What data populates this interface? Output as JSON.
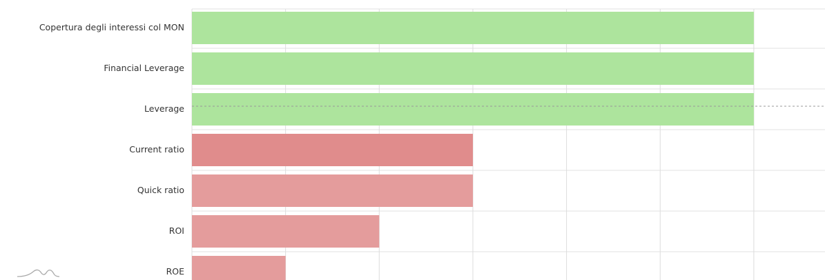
{
  "chart_data": {
    "type": "hbar",
    "categories": [
      "Copertura degli interessi col MON",
      "Financial Leverage",
      "Leverage",
      "Current ratio",
      "Quick ratio",
      "ROI",
      "ROE"
    ],
    "values": [
      6,
      6,
      6,
      3,
      3,
      2,
      1
    ],
    "colors": [
      "#ade49d",
      "#ade49d",
      "#ade49d",
      "#e08c8c",
      "#e49c9c",
      "#e49c9c",
      "#e49c9c"
    ],
    "xlim": [
      0,
      6.76
    ],
    "xticks": [
      0,
      1,
      2,
      3,
      4,
      5,
      6
    ],
    "grid": true
  }
}
